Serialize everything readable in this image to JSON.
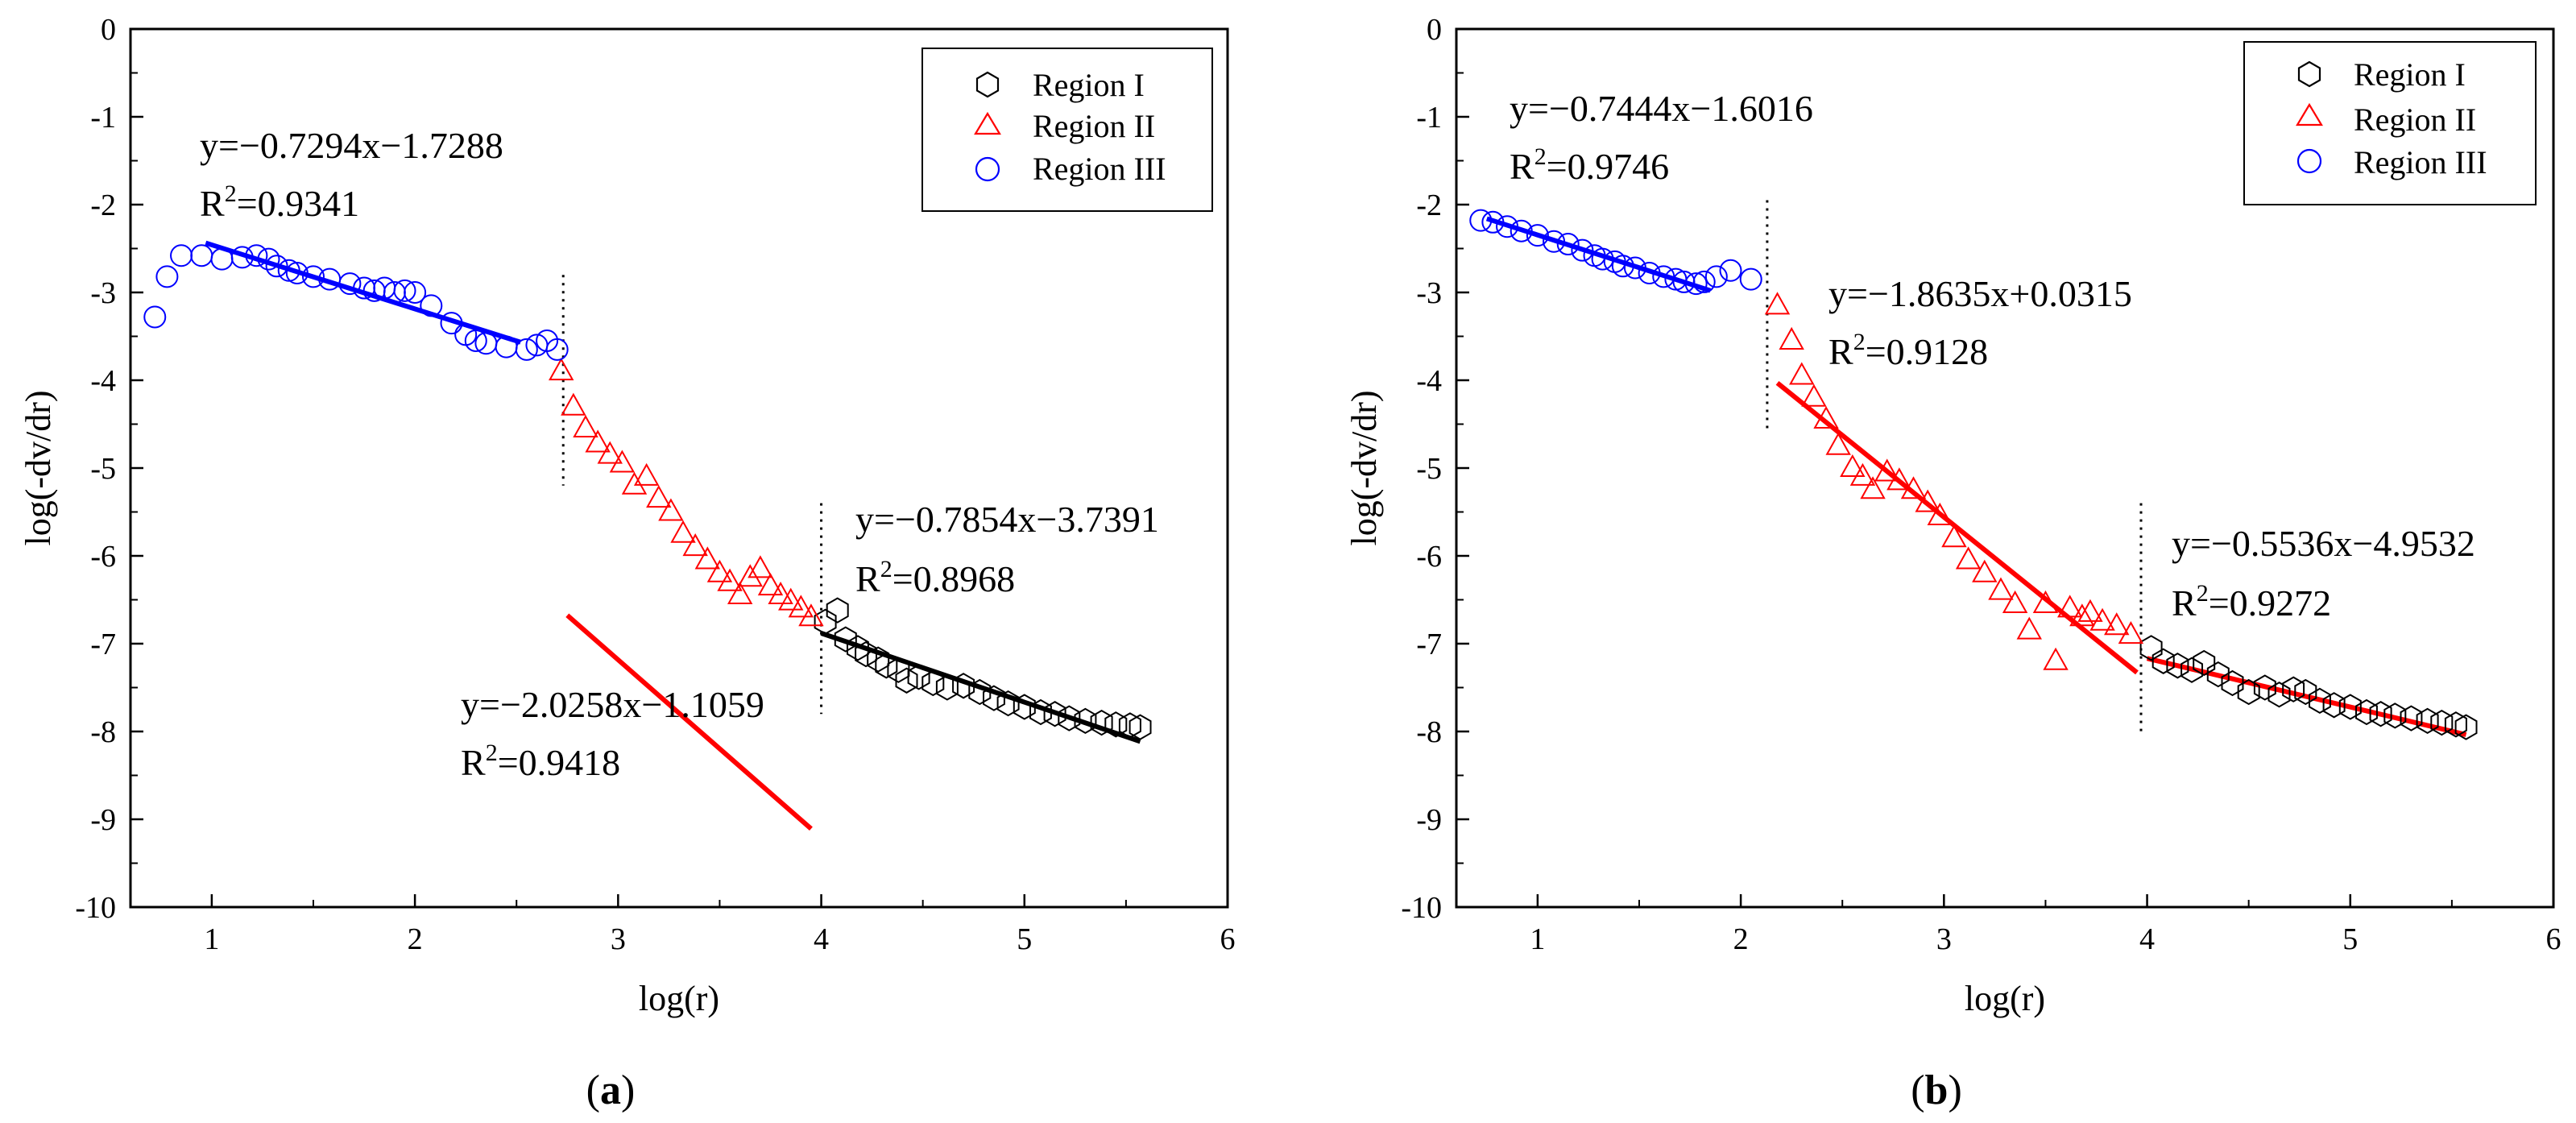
{
  "chart_data": [
    {
      "type": "scatter",
      "subplot_label": "a",
      "xlabel": "log(r)",
      "ylabel": "log(-dv/dr)",
      "xlim": [
        0.6,
        6
      ],
      "ylim": [
        -10,
        0
      ],
      "xticks": [
        1,
        2,
        3,
        4,
        5,
        6
      ],
      "yticks": [
        0,
        -1,
        -2,
        -3,
        -4,
        -5,
        -6,
        -7,
        -8,
        -9,
        -10
      ],
      "legend": [
        "Region I",
        "Region II",
        "Region III"
      ],
      "legend_position": "top-right",
      "series": [
        {
          "name": "Region I",
          "marker": "hexagon",
          "color": "#000000",
          "x": [
            4.02,
            4.08,
            4.12,
            4.18,
            4.22,
            4.28,
            4.32,
            4.38,
            4.42,
            4.48,
            4.55,
            4.62,
            4.7,
            4.78,
            4.85,
            4.92,
            5.0,
            5.08,
            5.15,
            5.22,
            5.3,
            5.38,
            5.45,
            5.52,
            5.57
          ],
          "y": [
            -6.75,
            -6.62,
            -6.95,
            -7.05,
            -7.12,
            -7.18,
            -7.25,
            -7.3,
            -7.42,
            -7.38,
            -7.45,
            -7.5,
            -7.48,
            -7.55,
            -7.62,
            -7.68,
            -7.72,
            -7.78,
            -7.8,
            -7.85,
            -7.88,
            -7.9,
            -7.92,
            -7.93,
            -7.95
          ]
        },
        {
          "name": "Region II",
          "marker": "triangle",
          "color": "#ff0000",
          "x": [
            2.72,
            2.78,
            2.84,
            2.9,
            2.96,
            3.02,
            3.08,
            3.14,
            3.2,
            3.26,
            3.32,
            3.38,
            3.44,
            3.5,
            3.55,
            3.6,
            3.65,
            3.7,
            3.75,
            3.8,
            3.85,
            3.9,
            3.95
          ],
          "y": [
            -3.9,
            -4.3,
            -4.55,
            -4.72,
            -4.85,
            -4.95,
            -5.2,
            -5.1,
            -5.35,
            -5.5,
            -5.75,
            -5.9,
            -6.05,
            -6.2,
            -6.3,
            -6.45,
            -6.25,
            -6.15,
            -6.35,
            -6.45,
            -6.52,
            -6.6,
            -6.7
          ]
        },
        {
          "name": "Region III",
          "marker": "circle",
          "color": "#0000ff",
          "x": [
            0.72,
            0.78,
            0.85,
            0.95,
            1.05,
            1.15,
            1.22,
            1.28,
            1.32,
            1.38,
            1.42,
            1.5,
            1.58,
            1.68,
            1.75,
            1.8,
            1.85,
            1.9,
            1.95,
            2.0,
            2.08,
            2.18,
            2.25,
            2.3,
            2.35,
            2.45,
            2.55,
            2.6,
            2.65,
            2.7
          ],
          "y": [
            -3.28,
            -2.82,
            -2.58,
            -2.58,
            -2.62,
            -2.6,
            -2.58,
            -2.62,
            -2.7,
            -2.75,
            -2.78,
            -2.82,
            -2.85,
            -2.9,
            -2.95,
            -2.98,
            -2.95,
            -3.0,
            -2.98,
            -3.0,
            -3.15,
            -3.35,
            -3.48,
            -3.55,
            -3.58,
            -3.62,
            -3.65,
            -3.6,
            -3.55,
            -3.65
          ]
        }
      ],
      "fit_lines": [
        {
          "region": "Region III",
          "color": "#0000ff",
          "x": [
            0.97,
            2.52
          ],
          "slope": -0.7294,
          "intercept": -1.7288
        },
        {
          "region": "Region II",
          "color": "#ff0000",
          "x": [
            2.75,
            3.95
          ],
          "slope": -2.0258,
          "intercept": -1.1059
        },
        {
          "region": "Region I",
          "color": "#000000",
          "x": [
            4.0,
            5.57
          ],
          "slope": -0.7854,
          "intercept": -3.7391
        }
      ],
      "boundaries": [
        {
          "x": 2.73,
          "y_range": [
            -5.2,
            -2.8
          ]
        },
        {
          "x": 4.0,
          "y_range": [
            -7.8,
            -5.4
          ]
        }
      ],
      "annotations": [
        {
          "eq": "y=−0.7294x−1.7288",
          "r2_label": "R",
          "r2_value": "=0.9341"
        },
        {
          "eq": "y=−2.0258x−1.1059",
          "r2_label": "R",
          "r2_value": "=0.9418"
        },
        {
          "eq": "y=−0.7854x−3.7391",
          "r2_label": "R",
          "r2_value": "=0.8968"
        }
      ]
    },
    {
      "type": "scatter",
      "subplot_label": "b",
      "xlabel": "log(r)",
      "ylabel": "log(-dv/dr)",
      "xlim": [
        0.6,
        6
      ],
      "ylim": [
        -10,
        0
      ],
      "xticks": [
        1,
        2,
        3,
        4,
        5,
        6
      ],
      "yticks": [
        0,
        -1,
        -2,
        -3,
        -4,
        -5,
        -6,
        -7,
        -8,
        -9,
        -10
      ],
      "legend": [
        "Region I",
        "Region II",
        "Region III"
      ],
      "legend_position": "top-right",
      "series": [
        {
          "name": "Region I",
          "marker": "hexagon",
          "color": "#000000",
          "x": [
            4.02,
            4.08,
            4.15,
            4.22,
            4.28,
            4.35,
            4.42,
            4.5,
            4.58,
            4.65,
            4.72,
            4.78,
            4.85,
            4.92,
            5.0,
            5.08,
            5.15,
            5.22,
            5.3,
            5.38,
            5.45,
            5.52,
            5.57
          ],
          "y": [
            -7.05,
            -7.2,
            -7.25,
            -7.3,
            -7.22,
            -7.35,
            -7.45,
            -7.55,
            -7.5,
            -7.58,
            -7.52,
            -7.55,
            -7.65,
            -7.7,
            -7.72,
            -7.78,
            -7.8,
            -7.82,
            -7.85,
            -7.88,
            -7.9,
            -7.92,
            -7.95
          ]
        },
        {
          "name": "Region II",
          "marker": "triangle",
          "color": "#ff0000",
          "x": [
            2.18,
            2.25,
            2.3,
            2.36,
            2.42,
            2.48,
            2.55,
            2.6,
            2.65,
            2.72,
            2.78,
            2.85,
            2.92,
            2.98,
            3.05,
            3.12,
            3.2,
            3.28,
            3.35,
            3.42,
            3.5,
            3.55,
            3.62,
            3.68,
            3.72,
            3.78,
            3.85,
            3.92
          ],
          "y": [
            -3.15,
            -3.55,
            -3.95,
            -4.2,
            -4.45,
            -4.75,
            -5.0,
            -5.1,
            -5.25,
            -5.05,
            -5.15,
            -5.25,
            -5.4,
            -5.55,
            -5.8,
            -6.05,
            -6.2,
            -6.4,
            -6.55,
            -6.85,
            -6.55,
            -7.2,
            -6.6,
            -6.7,
            -6.65,
            -6.75,
            -6.8,
            -6.9
          ]
        },
        {
          "name": "Region III",
          "marker": "circle",
          "color": "#0000ff",
          "x": [
            0.72,
            0.78,
            0.85,
            0.92,
            1.0,
            1.08,
            1.15,
            1.22,
            1.28,
            1.32,
            1.38,
            1.42,
            1.48,
            1.55,
            1.62,
            1.68,
            1.72,
            1.78,
            1.82,
            1.88,
            1.95,
            2.05
          ],
          "y": [
            -2.18,
            -2.2,
            -2.25,
            -2.3,
            -2.35,
            -2.42,
            -2.45,
            -2.52,
            -2.58,
            -2.62,
            -2.65,
            -2.7,
            -2.72,
            -2.78,
            -2.82,
            -2.85,
            -2.88,
            -2.9,
            -2.88,
            -2.82,
            -2.75,
            -2.85
          ]
        }
      ],
      "fit_lines": [
        {
          "region": "Region III",
          "color": "#0000ff",
          "x": [
            0.75,
            1.85
          ],
          "slope": -0.7444,
          "intercept": -1.6016
        },
        {
          "region": "Region II",
          "color": "#ff0000",
          "x": [
            2.18,
            3.95
          ],
          "slope": -1.8635,
          "intercept": 0.0315
        },
        {
          "region": "Region I",
          "color": "#ff0000",
          "x": [
            4.0,
            5.57
          ],
          "slope": -0.5536,
          "intercept": -4.9532
        }
      ],
      "boundaries": [
        {
          "x": 2.13,
          "y_range": [
            -4.6,
            -1.95
          ]
        },
        {
          "x": 3.97,
          "y_range": [
            -8.05,
            -5.4
          ]
        }
      ],
      "annotations": [
        {
          "eq": "y=−0.7444x−1.6016",
          "r2_label": "R",
          "r2_value": "=0.9746"
        },
        {
          "eq": "y=−1.8635x+0.0315",
          "r2_label": "R",
          "r2_value": "=0.9128"
        },
        {
          "eq": "y=−0.5536x−4.9532",
          "r2_label": "R",
          "r2_value": "=0.9272"
        }
      ]
    }
  ]
}
